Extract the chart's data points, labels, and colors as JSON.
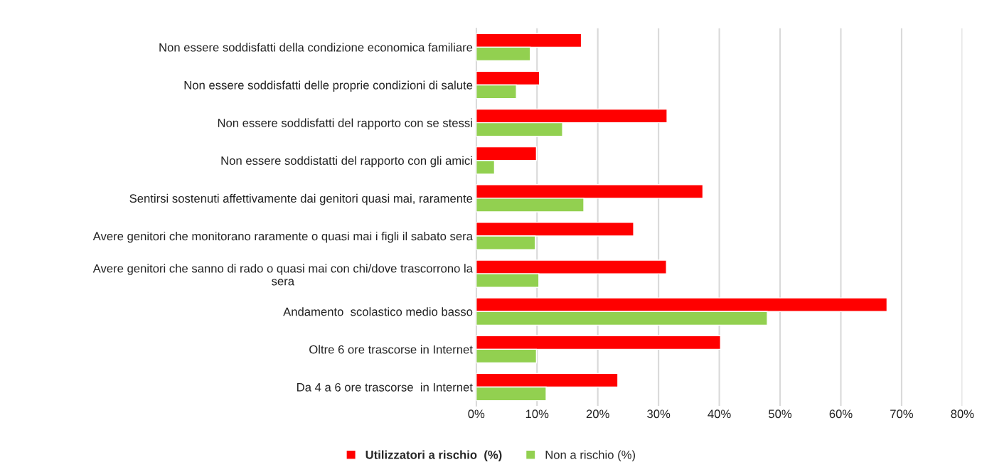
{
  "chart_data": {
    "type": "bar",
    "orientation": "horizontal",
    "categories": [
      "Non essere soddisfatti della condizione economica familiare",
      "Non essere soddisfatti delle proprie condizioni di salute",
      "Non essere soddisfatti del rapporto con se stessi",
      "Non essere soddistatti del rapporto con gli amici",
      "Sentirsi sostenuti affettivamente dai genitori quasi mai, raramente",
      "Avere genitori che monitorano raramente o quasi mai i figli il sabato sera",
      "Avere genitori che sanno di rado o quasi mai con chi/dove trascorrono la\nsera",
      "Andamento  scolastico medio basso",
      "Oltre 6 ore trascorse in Internet",
      "Da 4 a 6 ore trascorse  in Internet"
    ],
    "series": [
      {
        "name": "Utilizzatori a rischio  (%)",
        "color": "#ff0000",
        "values": [
          17.3,
          10.4,
          31.4,
          9.9,
          37.3,
          25.9,
          31.3,
          67.6,
          40.2,
          23.3
        ]
      },
      {
        "name": "Non a rischio (%)",
        "color": "#92d050",
        "values": [
          8.9,
          6.6,
          14.2,
          3.0,
          17.7,
          9.7,
          10.3,
          47.9,
          9.9,
          11.5
        ]
      }
    ],
    "xlim": [
      0,
      80
    ],
    "xticks": [
      {
        "value": 0,
        "label": "0%"
      },
      {
        "value": 10,
        "label": "10%"
      },
      {
        "value": 20,
        "label": "20%"
      },
      {
        "value": 30,
        "label": "30%"
      },
      {
        "value": 40,
        "label": "40%"
      },
      {
        "value": 50,
        "label": "50%"
      },
      {
        "value": 60,
        "label": "60%"
      },
      {
        "value": 70,
        "label": "70%"
      },
      {
        "value": 80,
        "label": "80%"
      }
    ],
    "grid": "x",
    "legend": "bottom"
  }
}
